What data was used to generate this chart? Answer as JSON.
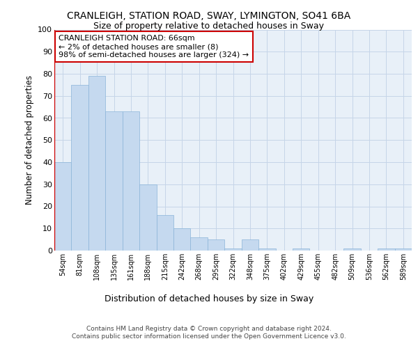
{
  "title": "CRANLEIGH, STATION ROAD, SWAY, LYMINGTON, SO41 6BA",
  "subtitle": "Size of property relative to detached houses in Sway",
  "xlabel": "Distribution of detached houses by size in Sway",
  "ylabel": "Number of detached properties",
  "categories": [
    "54sqm",
    "81sqm",
    "108sqm",
    "135sqm",
    "161sqm",
    "188sqm",
    "215sqm",
    "242sqm",
    "268sqm",
    "295sqm",
    "322sqm",
    "348sqm",
    "375sqm",
    "402sqm",
    "429sqm",
    "455sqm",
    "482sqm",
    "509sqm",
    "536sqm",
    "562sqm",
    "589sqm"
  ],
  "values": [
    40,
    75,
    79,
    63,
    63,
    30,
    16,
    10,
    6,
    5,
    1,
    5,
    1,
    0,
    1,
    0,
    0,
    1,
    0,
    1,
    1
  ],
  "bar_color": "#c5d9ef",
  "bar_edge_color": "#8ab4d8",
  "annotation_text": "CRANLEIGH STATION ROAD: 66sqm\n← 2% of detached houses are smaller (8)\n98% of semi-detached houses are larger (324) →",
  "annotation_box_facecolor": "#ffffff",
  "annotation_box_edgecolor": "#cc0000",
  "grid_color": "#c5d5e8",
  "bg_color": "#e8f0f8",
  "ylim": [
    0,
    100
  ],
  "yticks": [
    0,
    10,
    20,
    30,
    40,
    50,
    60,
    70,
    80,
    90,
    100
  ],
  "redline_x": -0.5,
  "footnote": "Contains HM Land Registry data © Crown copyright and database right 2024.\nContains public sector information licensed under the Open Government Licence v3.0."
}
